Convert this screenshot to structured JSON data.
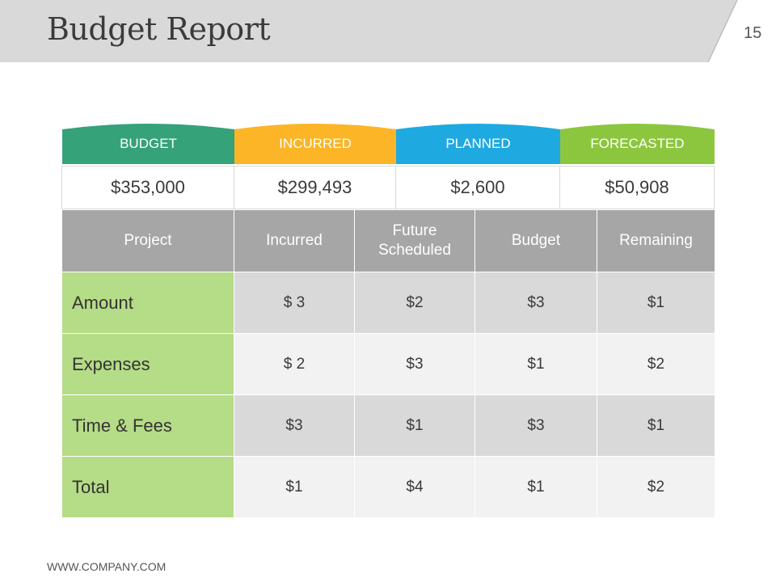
{
  "slide": {
    "title": "Budget Report",
    "number": "15",
    "footer": "WWW.COMPANY.COM"
  },
  "colors": {
    "header_band": "#d9d9d9",
    "budget": "#35a27a",
    "incurred": "#fbb526",
    "planned": "#1fa9e1",
    "forecasted": "#8cc63f",
    "row_label": "#b5dc86",
    "table_header": "#a6a6a6"
  },
  "summary": [
    {
      "label": "BUDGET",
      "value": "$353,000"
    },
    {
      "label": "INCURRED",
      "value": "$299,493"
    },
    {
      "label": "PLANNED",
      "value": "$2,600"
    },
    {
      "label": "FORECASTED",
      "value": "$50,908"
    }
  ],
  "table": {
    "headers": [
      "Project",
      "Incurred",
      "Future Scheduled",
      "Budget",
      "Remaining"
    ],
    "rows": [
      {
        "label": "Amount",
        "cells": [
          "$ 3",
          "$2",
          "$3",
          "$1"
        ]
      },
      {
        "label": "Expenses",
        "cells": [
          "$ 2",
          "$3",
          "$1",
          "$2"
        ]
      },
      {
        "label": "Time & Fees",
        "cells": [
          "$3",
          "$1",
          "$3",
          "$1"
        ]
      },
      {
        "label": "Total",
        "cells": [
          "$1",
          "$4",
          "$1",
          "$2"
        ]
      }
    ]
  }
}
